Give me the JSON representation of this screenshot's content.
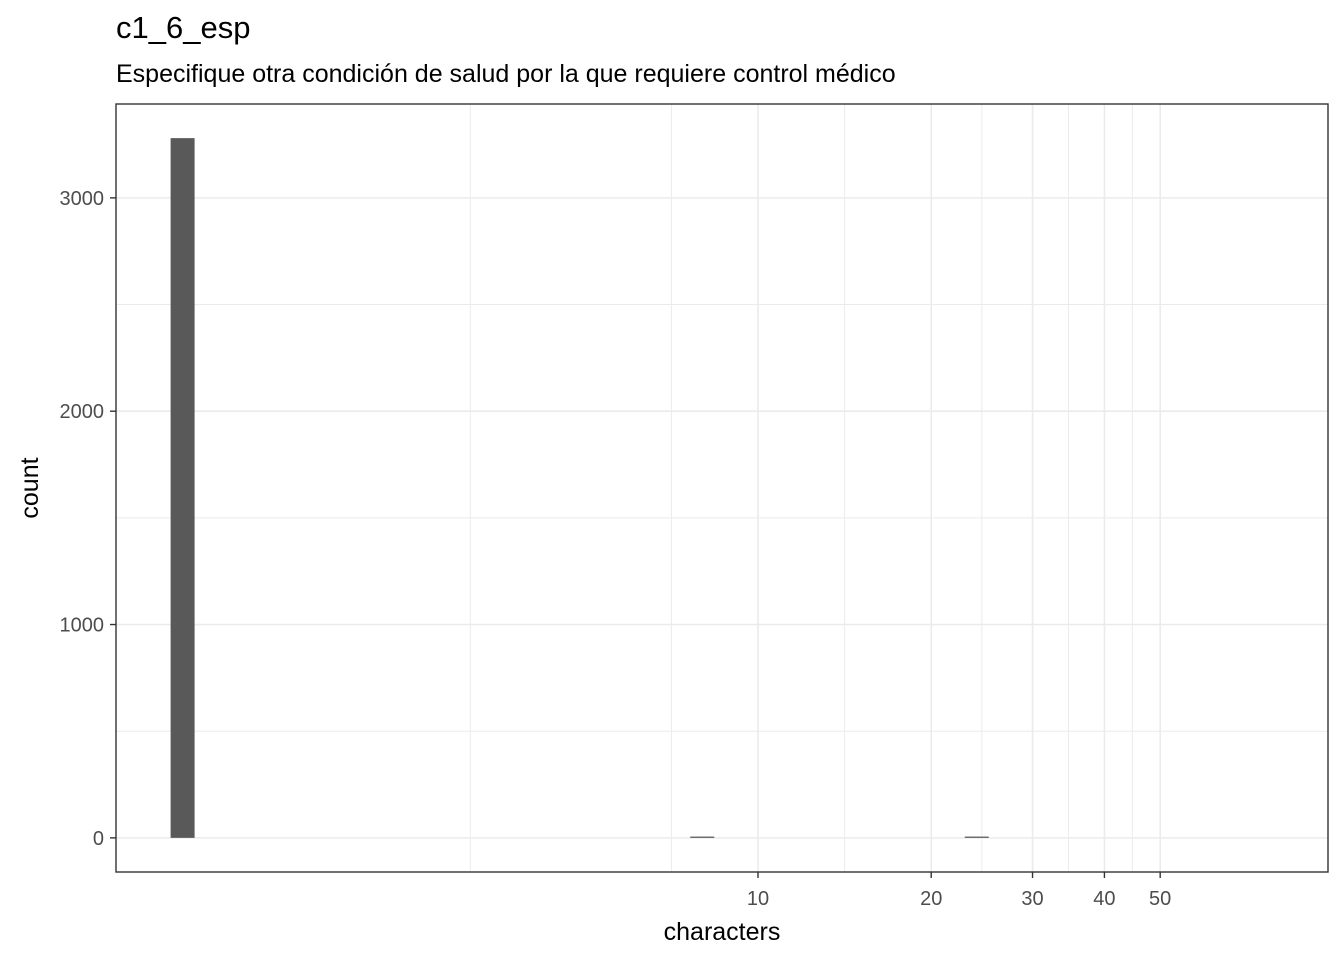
{
  "title": "c1_6_esp",
  "subtitle": "Especifique otra condición de salud por la que requiere control médico",
  "chart_data": {
    "type": "bar",
    "title": "c1_6_esp",
    "subtitle": "Especifique otra condición de salud por la que requiere control médico",
    "xlabel": "characters",
    "ylabel": "count",
    "x_scale": "log10",
    "x_ticks": [
      10,
      20,
      30,
      40,
      50
    ],
    "y_ticks": [
      0,
      1000,
      2000,
      3000
    ],
    "ylim": [
      -160,
      3440
    ],
    "bins": [
      {
        "x": 1,
        "count": 3280
      },
      {
        "x": 8,
        "count": 6
      },
      {
        "x": 24,
        "count": 6
      }
    ],
    "grid": true,
    "bar_color": "#595959",
    "panel_border": "#333333",
    "grid_color": "#ebebeb"
  }
}
